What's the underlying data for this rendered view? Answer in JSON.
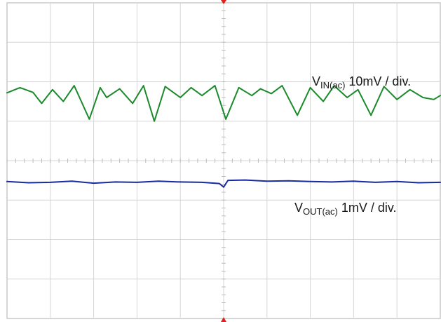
{
  "chart_data": {
    "type": "line",
    "grid": true,
    "divisions": {
      "x": 10,
      "y": 8
    },
    "series": [
      {
        "name": "VIN(ac) 10mV / div.",
        "color": "#1a8a2a",
        "vertical_scale": "10mV / div.",
        "offset_div": 1.6,
        "x_div": [
          0,
          0.3,
          0.6,
          0.8,
          1.05,
          1.3,
          1.55,
          1.9,
          2.15,
          2.3,
          2.6,
          2.9,
          3.15,
          3.4,
          3.65,
          4.0,
          4.25,
          4.5,
          4.8,
          5.05,
          5.35,
          5.65,
          5.85,
          6.1,
          6.35,
          6.7,
          7.0,
          7.3,
          7.55,
          7.85,
          8.1,
          8.4,
          8.7,
          9.0,
          9.3,
          9.6,
          9.85,
          10.0
        ],
        "y_div": [
          0.12,
          0.25,
          0.13,
          -0.15,
          0.2,
          -0.1,
          0.3,
          -0.55,
          0.25,
          0.0,
          0.22,
          -0.15,
          0.3,
          -0.6,
          0.28,
          0.0,
          0.25,
          0.05,
          0.3,
          -0.55,
          0.25,
          0.05,
          0.22,
          0.1,
          0.3,
          -0.45,
          0.25,
          -0.1,
          0.3,
          0.0,
          0.2,
          -0.45,
          0.28,
          -0.05,
          0.2,
          0.0,
          -0.05,
          0.05
        ]
      },
      {
        "name": "VOUT(ac) 1mV / div.",
        "color": "#1a2aa0",
        "vertical_scale": "1mV / div.",
        "offset_div": -0.55,
        "x_div": [
          0,
          0.5,
          1.0,
          1.5,
          2.0,
          2.5,
          3.0,
          3.5,
          4.0,
          4.5,
          4.9,
          5.0,
          5.1,
          5.5,
          6.0,
          6.5,
          7.0,
          7.5,
          8.0,
          8.5,
          9.0,
          9.5,
          10.0
        ],
        "y_div": [
          0.02,
          -0.01,
          0.0,
          0.03,
          -0.02,
          0.01,
          0.0,
          0.03,
          0.01,
          0.0,
          -0.03,
          -0.12,
          0.05,
          0.06,
          0.03,
          0.04,
          0.02,
          0.01,
          0.03,
          0.0,
          0.02,
          -0.01,
          0.0
        ]
      }
    ]
  },
  "labels": {
    "vin": {
      "main": "V",
      "sub": "IN(ac)",
      "rest": " 10mV / div."
    },
    "vout": {
      "main": "V",
      "sub": "OUT(ac)",
      "rest": " 1mV / div."
    }
  }
}
